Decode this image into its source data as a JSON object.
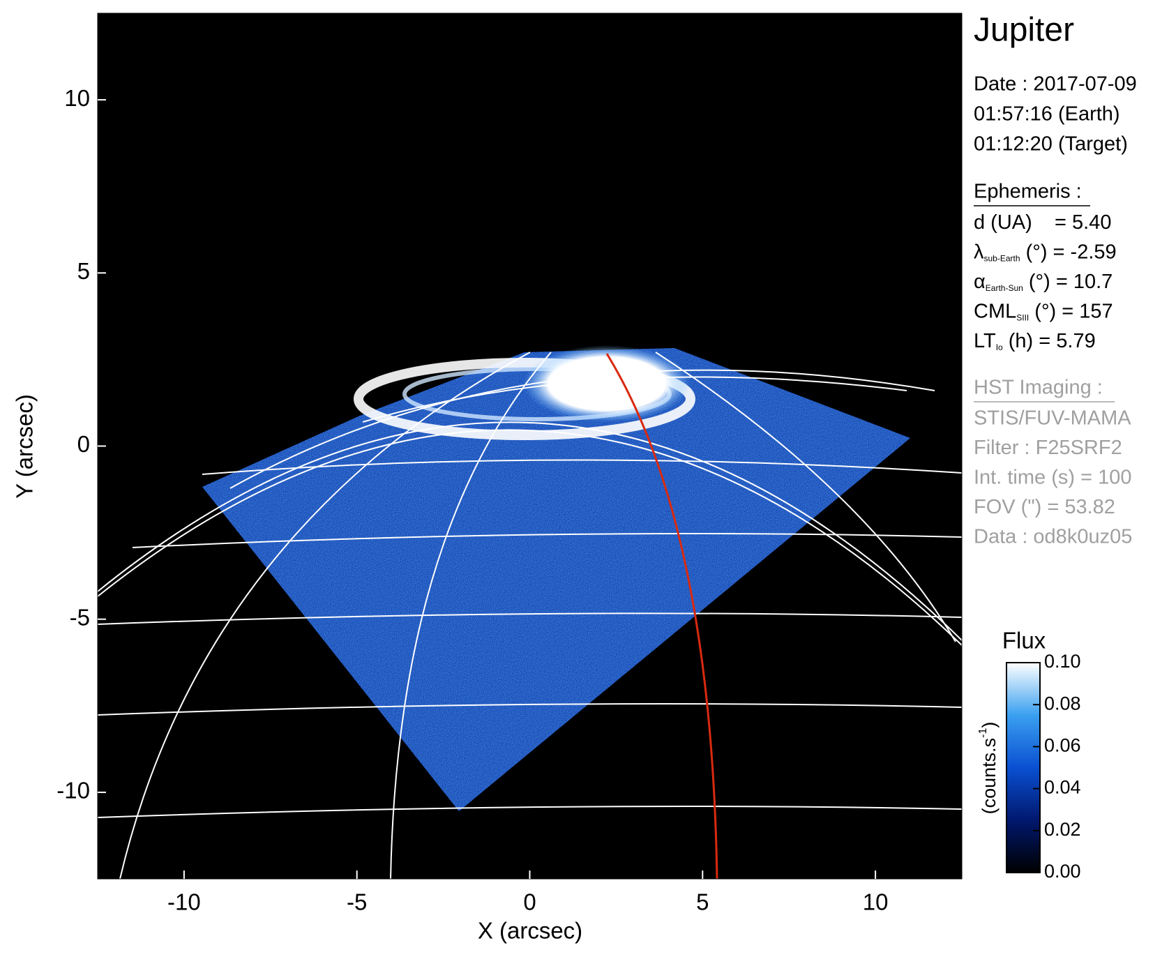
{
  "chart_data": {
    "type": "image",
    "xlabel": "X (arcsec)",
    "ylabel": "Y (arcsec)",
    "xlim": [
      -12.5,
      12.5
    ],
    "ylim": [
      -12.5,
      12.5
    ],
    "xticks": [
      -10,
      -5,
      0,
      5,
      10
    ],
    "yticks": [
      -10,
      -5,
      0,
      5,
      10
    ],
    "colorbar": {
      "title": "Flux",
      "units": [
        "(counts.s",
        "-1",
        ")"
      ],
      "clim": [
        0,
        0.1
      ],
      "colors": [
        "#000000",
        "#00186e",
        "#0a50d2",
        "#3aa0f0",
        "#ffffff"
      ],
      "ticks": [
        {
          "value": 0,
          "label": "0.00"
        },
        {
          "value": 0.02,
          "label": "0.02"
        },
        {
          "value": 0.04,
          "label": "0.04"
        },
        {
          "value": 0.06,
          "label": "0.06"
        },
        {
          "value": 0.08,
          "label": "0.08"
        },
        {
          "value": 0.1,
          "label": "0.10"
        }
      ]
    }
  },
  "info": {
    "title": "Jupiter",
    "date": [
      "Date : 2017-07-09",
      "01:57:16 (Earth)",
      "01:12:20 (Target)"
    ],
    "ephemeris": {
      "heading": "Ephemeris :",
      "items": [
        {
          "main": "d (UA)    = 5.40"
        },
        {
          "main": "λ",
          "sub": "sub-Earth",
          "rest": " (°) = -2.59"
        },
        {
          "main": "α",
          "sub": "Earth-Sun",
          "rest": " (°) = 10.7"
        },
        {
          "main": "CML",
          "sub": "SIII",
          "rest": " (°) = 157"
        },
        {
          "main": "LT",
          "sub": "Io",
          "rest": " (h) = 5.79"
        }
      ]
    },
    "imaging": {
      "heading": "HST Imaging :",
      "lines": [
        "STIS/FUV-MAMA",
        "Filter : F25SRF2",
        "Int. time (s) = 100",
        "FOV (\") = 53.82",
        "Data : od8k0uz05"
      ]
    }
  }
}
